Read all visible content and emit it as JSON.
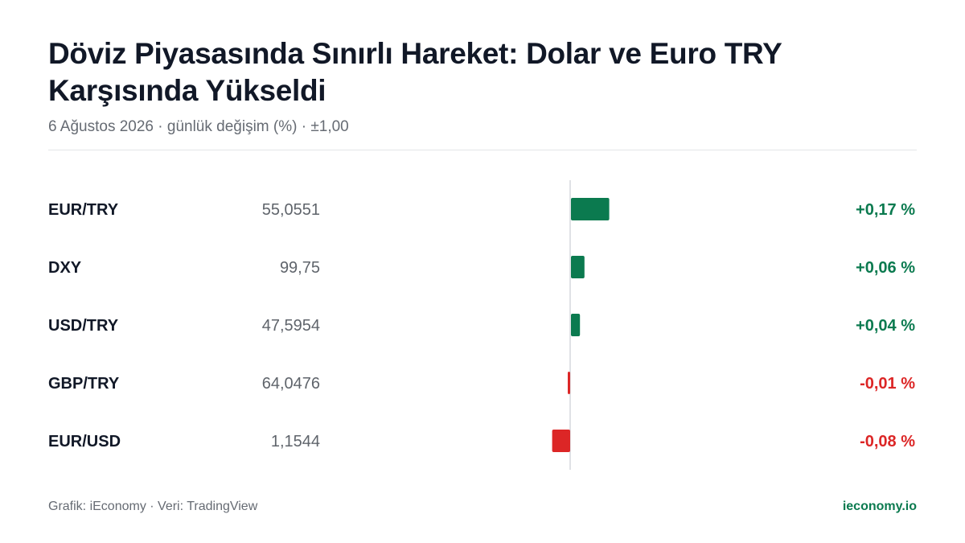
{
  "header": {
    "title": "Döviz Piyasasında Sınırlı Hareket: Dolar ve Euro TRY Karşısında Yükseldi",
    "subtitle": "6 Ağustos 2026 · günlük değişim (%) · ±1,00"
  },
  "chart_data": {
    "type": "bar",
    "orientation": "horizontal",
    "categories": [
      "EUR/TRY",
      "DXY",
      "USD/TRY",
      "GBP/TRY",
      "EUR/USD"
    ],
    "prices": [
      "55,0551",
      "99,75",
      "47,5954",
      "64,0476",
      "1,1544"
    ],
    "values": [
      0.17,
      0.06,
      0.04,
      -0.01,
      -0.08
    ],
    "value_labels": [
      "+0,17 %",
      "+0,06 %",
      "+0,04 %",
      "-0,01 %",
      "-0,08 %"
    ],
    "xlim": [
      -1,
      1
    ],
    "positive_color": "#0b7a4f",
    "negative_color": "#dc2626"
  },
  "footer": {
    "source": "Grafik: iEconomy · Veri: TradingView",
    "brand": "ieconomy.io"
  }
}
